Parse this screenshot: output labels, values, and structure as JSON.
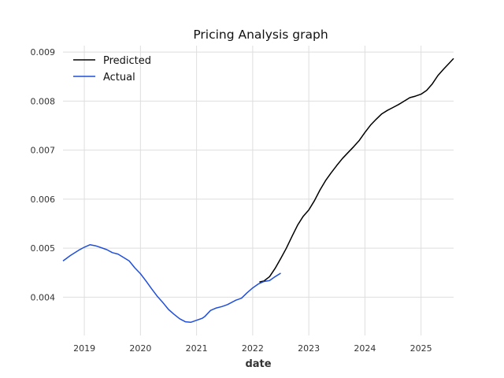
{
  "chart_data": {
    "type": "line",
    "title": "Pricing Analysis graph",
    "xlabel": "date",
    "ylabel": "",
    "xlim": [
      2018.62,
      2025.58
    ],
    "ylim": [
      0.00322,
      0.00913
    ],
    "grid": true,
    "legend_position": "top-left",
    "x_ticks": [
      2019,
      2020,
      2021,
      2022,
      2023,
      2024,
      2025
    ],
    "x_tick_labels": [
      "2019",
      "2020",
      "2021",
      "2022",
      "2023",
      "2024",
      "2025"
    ],
    "y_ticks": [
      0.004,
      0.005,
      0.006,
      0.007,
      0.008,
      0.009
    ],
    "y_tick_labels": [
      "0.004",
      "0.005",
      "0.006",
      "0.007",
      "0.008",
      "0.009"
    ],
    "series": [
      {
        "name": "Predicted",
        "color": "#000000",
        "x": [
          2022.12,
          2022.2,
          2022.3,
          2022.4,
          2022.5,
          2022.6,
          2022.7,
          2022.8,
          2022.9,
          2023.0,
          2023.1,
          2023.2,
          2023.3,
          2023.4,
          2023.5,
          2023.6,
          2023.7,
          2023.8,
          2023.9,
          2024.0,
          2024.1,
          2024.2,
          2024.3,
          2024.4,
          2024.5,
          2024.6,
          2024.7,
          2024.8,
          2024.9,
          2025.0,
          2025.1,
          2025.2,
          2025.3,
          2025.4,
          2025.5,
          2025.58
        ],
        "y": [
          0.00431,
          0.00433,
          0.00442,
          0.00459,
          0.00479,
          0.005,
          0.00524,
          0.00547,
          0.00565,
          0.00578,
          0.00597,
          0.00619,
          0.00638,
          0.00654,
          0.00669,
          0.00683,
          0.00695,
          0.00707,
          0.0072,
          0.00736,
          0.00751,
          0.00763,
          0.00774,
          0.00781,
          0.00787,
          0.00793,
          0.008,
          0.00807,
          0.0081,
          0.00814,
          0.00822,
          0.00835,
          0.00852,
          0.00865,
          0.00877,
          0.00887
        ]
      },
      {
        "name": "Actual",
        "color": "#1f4fdb",
        "x": [
          2018.62,
          2018.75,
          2018.9,
          2019.0,
          2019.1,
          2019.2,
          2019.3,
          2019.4,
          2019.5,
          2019.6,
          2019.7,
          2019.8,
          2019.9,
          2020.0,
          2020.1,
          2020.2,
          2020.3,
          2020.4,
          2020.5,
          2020.6,
          2020.7,
          2020.8,
          2020.9,
          2021.0,
          2021.1,
          2021.15,
          2021.25,
          2021.35,
          2021.45,
          2021.55,
          2021.7,
          2021.8,
          2021.9,
          2022.0,
          2022.1,
          2022.2,
          2022.3,
          2022.4,
          2022.5
        ],
        "y": [
          0.00474,
          0.00485,
          0.00496,
          0.00502,
          0.00507,
          0.00505,
          0.00501,
          0.00497,
          0.00491,
          0.00488,
          0.00481,
          0.00474,
          0.0046,
          0.00448,
          0.00433,
          0.00417,
          0.00402,
          0.00389,
          0.00375,
          0.00365,
          0.00356,
          0.0035,
          0.00349,
          0.00353,
          0.00357,
          0.00361,
          0.00373,
          0.00378,
          0.00381,
          0.00385,
          0.00394,
          0.00398,
          0.00409,
          0.00419,
          0.00427,
          0.00432,
          0.00434,
          0.00442,
          0.00449
        ]
      }
    ]
  }
}
